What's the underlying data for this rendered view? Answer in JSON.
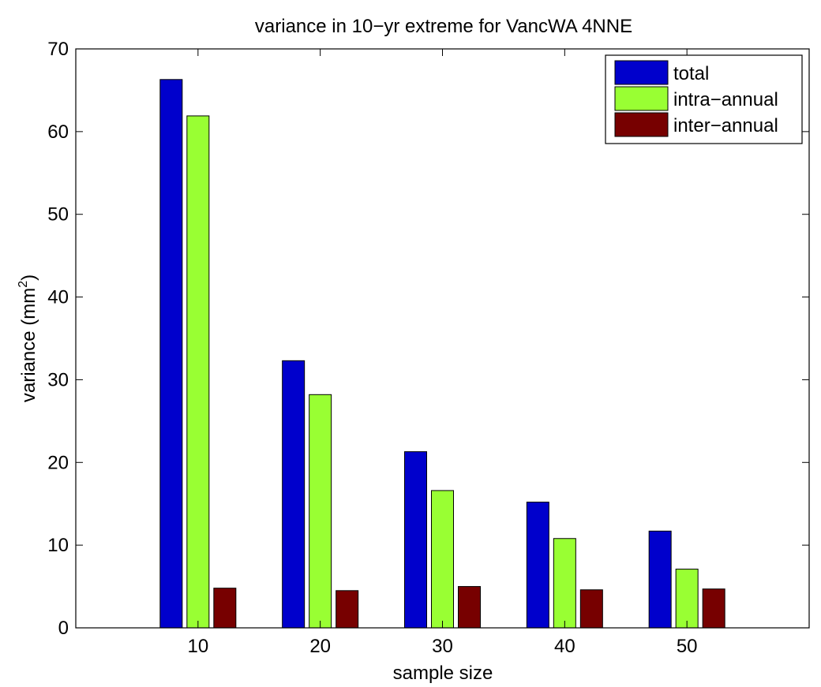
{
  "chart_data": {
    "type": "bar",
    "title": "variance in 10−yr extreme for VancWA 4NNE",
    "xlabel": "sample size",
    "ylabel": "variance (mm",
    "ylabel_sup": "2",
    "ylabel_close": ")",
    "categories": [
      "10",
      "20",
      "30",
      "40",
      "50"
    ],
    "x_ticks": [
      10,
      20,
      30,
      40,
      50
    ],
    "xlim": [
      0,
      60
    ],
    "ylim": [
      0,
      70
    ],
    "y_ticks": [
      0,
      10,
      20,
      30,
      40,
      50,
      60,
      70
    ],
    "legend_position": "top-right",
    "grid": false,
    "series": [
      {
        "name": "total",
        "color": "#0000cc",
        "values": [
          66.3,
          32.3,
          21.3,
          15.2,
          11.7
        ]
      },
      {
        "name": "intra−annual",
        "color": "#99ff33",
        "values": [
          61.9,
          28.2,
          16.6,
          10.8,
          7.1
        ]
      },
      {
        "name": "inter−annual",
        "color": "#770000",
        "values": [
          4.8,
          4.5,
          5.0,
          4.6,
          4.7
        ]
      }
    ]
  }
}
